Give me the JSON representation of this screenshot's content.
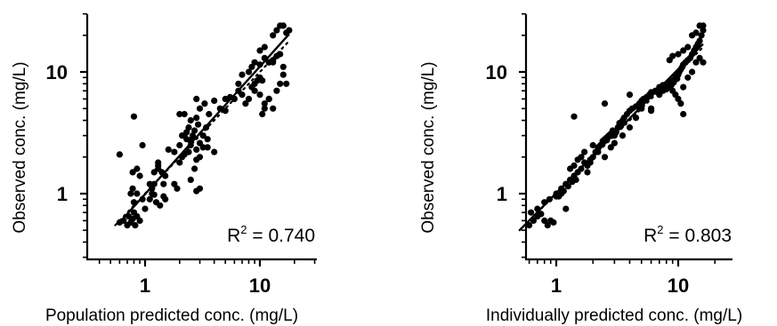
{
  "chart_data": [
    {
      "type": "scatter",
      "panel": "left",
      "xlabel": "Population predicted conc. (mg/L)",
      "ylabel": "Observed conc. (mg/L)",
      "xscale": "log",
      "yscale": "log",
      "xlim": [
        0.3,
        30
      ],
      "ylim": [
        0.45,
        30
      ],
      "x_tick_labels": [
        "1",
        "10"
      ],
      "y_tick_labels": [
        "1",
        "10"
      ],
      "grid": false,
      "annotation": {
        "prefix": "R",
        "sup": "2",
        "value": " = 0.740"
      },
      "regression_line": {
        "x": [
          0.6,
          18
        ],
        "y": [
          0.58,
          20.5
        ]
      },
      "identity_line": {
        "x": [
          0.55,
          18
        ],
        "y": [
          0.55,
          18
        ]
      },
      "series": [
        {
          "x": [
            0.6,
            0.65,
            0.7,
            0.72,
            0.75,
            0.78,
            0.8,
            0.82,
            0.85,
            0.9,
            0.75,
            0.78,
            0.8,
            0.85,
            0.95,
            1.0,
            0.78,
            0.85,
            0.9,
            1.1,
            1.15,
            1.2,
            1.25,
            1.3,
            1.3,
            1.4,
            1.45,
            1.5,
            1.1,
            1.15,
            1.2,
            1.2,
            1.3,
            1.35,
            1.45,
            1.5,
            1.6,
            1.8,
            1.9,
            2.0,
            2.1,
            2.2,
            2.0,
            2.1,
            2.3,
            2.4,
            2.5,
            2.6,
            2.8,
            3.0,
            2.5,
            2.7,
            3.2,
            3.5,
            2.2,
            2.3,
            2.4,
            2.5,
            2.6,
            2.7,
            2.9,
            3.0,
            3.2,
            3.4,
            2.8,
            3.0,
            3.3,
            3.6,
            4.0,
            4.5,
            5.0,
            5.5,
            2.0,
            2.2,
            2.5,
            2.8,
            3.5,
            4.0,
            2.8,
            3.0,
            5.0,
            6.0,
            6.5,
            7.0,
            7.5,
            8.0,
            8.5,
            9.0,
            9.5,
            10.0,
            6.5,
            7.0,
            8.0,
            8.5,
            9.0,
            10.0,
            11.0,
            12.0,
            13.0,
            14.0,
            15.0,
            16.0,
            10.0,
            11.0,
            12.0,
            9.0,
            10.0,
            11.0,
            12.0,
            13.0,
            14.0,
            15.0,
            16.0,
            17.0,
            13.0,
            14.0,
            15.0,
            16.0,
            17.0,
            18.0,
            10.5,
            11.0,
            12.0,
            13.0,
            0.6,
            0.8,
            0.95,
            1.8,
            2.8,
            10.5
          ],
          "y": [
            0.58,
            0.6,
            0.55,
            0.65,
            0.58,
            0.62,
            0.7,
            0.55,
            0.65,
            0.6,
            1.0,
            1.1,
            0.85,
            1.0,
            0.9,
            0.75,
            1.5,
            1.6,
            1.4,
            0.9,
            1.0,
            1.2,
            0.85,
            1.6,
            1.8,
            1.5,
            0.95,
            0.9,
            1.2,
            1.1,
            0.98,
            1.5,
            1.7,
            0.8,
            1.2,
            1.4,
            2.3,
            1.2,
            1.1,
            1.8,
            2.0,
            2.1,
            2.5,
            3.0,
            2.8,
            2.2,
            2.5,
            2.9,
            1.9,
            2.0,
            1.3,
            1.6,
            2.4,
            2.8,
            4.5,
            3.2,
            3.5,
            4.0,
            3.0,
            3.3,
            3.7,
            2.6,
            3.0,
            3.5,
            4.2,
            5.0,
            5.5,
            4.5,
            5.8,
            5.0,
            6.0,
            6.2,
            4.5,
            3.0,
            2.7,
            2.3,
            2.4,
            2.2,
            1.05,
            1.1,
            4.8,
            6.0,
            7.0,
            6.5,
            5.5,
            6.0,
            7.5,
            8.0,
            8.5,
            9.0,
            8.0,
            9.5,
            10.0,
            11.0,
            12.0,
            11.5,
            13.0,
            12.0,
            12.5,
            13.5,
            14.0,
            11.0,
            15.0,
            16.0,
            12.0,
            7.0,
            6.5,
            5.5,
            6.0,
            5.0,
            7.0,
            8.0,
            9.5,
            8.0,
            20.0,
            22.0,
            24.0,
            24.0,
            21.0,
            22.0,
            4.5,
            5.0,
            6.0,
            12.0,
            2.1,
            4.3,
            2.5,
            2.2,
            6.0,
            8.5
          ]
        }
      ]
    },
    {
      "type": "scatter",
      "panel": "right",
      "xlabel": "Individually predicted conc. (mg/L)",
      "ylabel": "Observed conc. (mg/L)",
      "xscale": "log",
      "yscale": "log",
      "xlim": [
        0.3,
        30
      ],
      "ylim": [
        0.45,
        30
      ],
      "x_tick_labels": [
        "1",
        "10"
      ],
      "y_tick_labels": [
        "1",
        "10"
      ],
      "grid": false,
      "annotation": {
        "prefix": "R",
        "sup": "2",
        "value": " = 0.803"
      },
      "regression_line": {
        "x": [
          0.5,
          16
        ],
        "y": [
          0.5,
          17
        ]
      },
      "identity_line": {
        "x": [
          0.5,
          16
        ],
        "y": [
          0.5,
          16
        ]
      },
      "series": [
        {
          "x": [
            0.5,
            0.55,
            0.6,
            0.65,
            0.7,
            0.75,
            0.8,
            0.85,
            0.9,
            0.95,
            0.55,
            0.62,
            0.7,
            0.8,
            0.88,
            1.0,
            1.05,
            1.1,
            1.15,
            1.2,
            1.25,
            1.3,
            1.35,
            1.4,
            1.45,
            1.5,
            1.6,
            1.7,
            1.8,
            1.9,
            1.0,
            1.1,
            1.2,
            1.3,
            1.4,
            1.5,
            1.6,
            1.7,
            1.8,
            1.9,
            2.0,
            2.1,
            2.2,
            2.3,
            2.4,
            2.5,
            2.6,
            2.7,
            2.8,
            2.9,
            3.0,
            3.1,
            3.2,
            3.3,
            3.4,
            3.5,
            3.6,
            3.8,
            4.0,
            4.2,
            4.5,
            4.8,
            5.0,
            5.2,
            5.5,
            5.8,
            6.0,
            6.5,
            7.0,
            7.5,
            2.0,
            2.2,
            2.5,
            2.8,
            3.0,
            3.5,
            4.0,
            4.5,
            5.0,
            6.0,
            7.0,
            7.5,
            8.0,
            8.2,
            8.5,
            8.8,
            9.0,
            9.2,
            9.5,
            9.8,
            10.0,
            10.2,
            10.5,
            10.8,
            11.0,
            11.5,
            12.0,
            12.5,
            13.0,
            13.5,
            14.0,
            14.5,
            15.0,
            15.5,
            16.0,
            9.0,
            9.5,
            10.0,
            10.5,
            11.0,
            12.0,
            13.0,
            14.0,
            15.0,
            16.0,
            8.5,
            9.0,
            10.0,
            11.0,
            12.0,
            13.0,
            14.0,
            15.0,
            16.0,
            1.4,
            2.5,
            4.0,
            6.0,
            7.0,
            11.0
          ],
          "y": [
            0.58,
            0.6,
            0.55,
            0.6,
            0.65,
            0.68,
            0.6,
            0.55,
            0.6,
            0.58,
            0.8,
            0.7,
            0.75,
            0.85,
            0.9,
            1.0,
            0.95,
            1.1,
            1.05,
            1.2,
            1.15,
            1.3,
            1.25,
            1.4,
            1.3,
            1.5,
            1.6,
            1.8,
            1.7,
            1.9,
            0.95,
            1.0,
            0.75,
            1.6,
            1.7,
            1.9,
            2.0,
            2.2,
            1.5,
            1.8,
            2.0,
            2.2,
            2.4,
            2.5,
            2.7,
            2.8,
            2.9,
            3.0,
            3.1,
            3.3,
            3.0,
            3.2,
            3.5,
            3.8,
            3.6,
            4.0,
            4.2,
            4.5,
            4.8,
            5.0,
            5.2,
            5.5,
            5.8,
            6.0,
            6.2,
            6.5,
            6.8,
            7.0,
            7.5,
            7.8,
            2.5,
            2.2,
            2.0,
            2.4,
            2.6,
            3.0,
            3.5,
            4.2,
            5.0,
            4.8,
            6.5,
            7.0,
            7.2,
            7.5,
            8.0,
            7.8,
            8.5,
            8.2,
            9.0,
            8.8,
            9.5,
            10.0,
            10.5,
            11.0,
            11.5,
            12.0,
            12.5,
            13.0,
            14.0,
            15.0,
            16.0,
            17.0,
            18.0,
            20.0,
            22.0,
            7.0,
            6.5,
            6.0,
            5.5,
            7.5,
            9.0,
            10.0,
            12.0,
            13.0,
            12.0,
            12.5,
            13.5,
            14.0,
            15.0,
            16.0,
            20.0,
            21.0,
            24.0,
            24.0,
            4.3,
            5.5,
            6.5,
            5.0,
            7.0,
            4.5
          ]
        }
      ]
    }
  ]
}
